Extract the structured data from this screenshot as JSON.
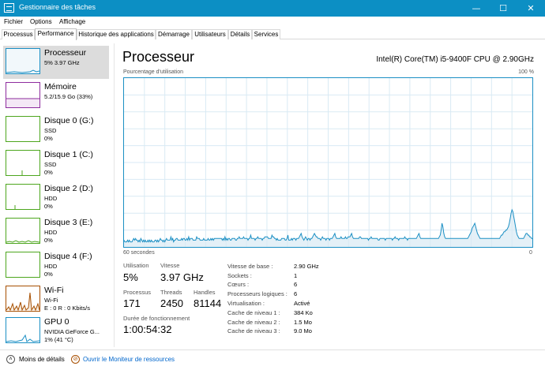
{
  "window": {
    "title": "Gestionnaire des tâches",
    "minimize": "—",
    "maximize": "☐",
    "close": "✕"
  },
  "menu": {
    "items": [
      "Fichier",
      "Options",
      "Affichage"
    ]
  },
  "tabs": [
    "Processus",
    "Performance",
    "Historique des applications",
    "Démarrage",
    "Utilisateurs",
    "Détails",
    "Services"
  ],
  "active_tab": "Performance",
  "sidebar": {
    "items": [
      {
        "name": "Processeur",
        "sub1": "5% 3.97 GHz",
        "sub2": "",
        "color": "#1b8fc4"
      },
      {
        "name": "Mémoire",
        "sub1": "5.2/15.9 Go (33%)",
        "sub2": "",
        "color": "#8e2c9e"
      },
      {
        "name": "Disque 0 (G:)",
        "sub1": "SSD",
        "sub2": "0%",
        "color": "#4da61e"
      },
      {
        "name": "Disque 1 (C:)",
        "sub1": "SSD",
        "sub2": "0%",
        "color": "#4da61e"
      },
      {
        "name": "Disque 2 (D:)",
        "sub1": "HDD",
        "sub2": "0%",
        "color": "#4da61e"
      },
      {
        "name": "Disque 3 (E:)",
        "sub1": "HDD",
        "sub2": "0%",
        "color": "#4da61e"
      },
      {
        "name": "Disque 4 (F:)",
        "sub1": "HDD",
        "sub2": "0%",
        "color": "#4da61e"
      },
      {
        "name": "Wi-Fi",
        "sub1": "Wi-Fi",
        "sub2": "E : 0 R : 0 Kbits/s",
        "color": "#a74f01"
      },
      {
        "name": "GPU 0",
        "sub1": "NVIDIA GeForce G...",
        "sub2": "1% (41 °C)",
        "color": "#1b8fc4"
      }
    ]
  },
  "main": {
    "title": "Processeur",
    "cpu_model": "Intel(R) Core(TM) i5-9400F CPU @ 2.90GHz",
    "graph_label": "Pourcentage d'utilisation",
    "graph_max": "100 %",
    "graph_time": "60 secondes",
    "graph_min": "0"
  },
  "stats": {
    "utilisation_label": "Utilisation",
    "utilisation": "5%",
    "vitesse_label": "Vitesse",
    "vitesse": "3.97 GHz",
    "processus_label": "Processus",
    "processus": "171",
    "threads_label": "Threads",
    "threads": "2450",
    "handles_label": "Handles",
    "handles": "81144",
    "uptime_label": "Durée de fonctionnement",
    "uptime": "1:00:54:32"
  },
  "properties": [
    {
      "label": "Vitesse de base :",
      "value": "2.90 GHz"
    },
    {
      "label": "Sockets :",
      "value": "1"
    },
    {
      "label": "Cœurs :",
      "value": "6"
    },
    {
      "label": "Processeurs logiques :",
      "value": "6"
    },
    {
      "label": "Virtualisation :",
      "value": "Activé"
    },
    {
      "label": "Cache de niveau 1 :",
      "value": "384 Ko"
    },
    {
      "label": "Cache de niveau 2 :",
      "value": "1.5 Mo"
    },
    {
      "label": "Cache de niveau 3 :",
      "value": "9.0 Mo"
    }
  ],
  "footer": {
    "less_details": "Moins de détails",
    "resource_monitor": "Ouvrir le Moniteur de ressources"
  },
  "chart_data": {
    "type": "area",
    "ylim": [
      0,
      100
    ],
    "values": [
      4,
      3,
      3,
      3,
      4,
      3,
      4,
      3,
      3,
      3,
      4,
      5,
      4,
      5,
      4,
      4,
      3,
      4,
      3,
      5,
      4,
      3,
      4,
      3,
      4,
      3,
      3,
      4,
      3,
      4,
      3,
      4,
      3,
      3,
      3,
      4,
      4,
      3,
      4,
      3,
      4,
      5,
      4,
      4,
      3,
      4,
      3,
      4,
      5,
      4,
      4,
      4,
      4,
      6,
      4,
      5,
      3,
      4,
      4,
      5,
      5,
      4,
      4,
      4,
      4,
      5,
      4,
      5,
      5,
      4,
      4,
      5,
      4,
      6,
      4,
      5,
      5,
      5,
      4,
      4,
      4,
      4,
      6,
      5,
      5,
      5,
      4,
      4,
      4,
      4,
      5,
      4,
      4,
      4,
      4,
      5,
      4,
      4,
      5,
      4,
      5,
      4,
      5,
      5,
      5,
      5,
      5,
      5,
      5,
      5,
      5,
      4,
      5,
      4,
      6,
      4,
      5,
      4,
      5,
      5,
      4,
      4,
      5,
      5,
      5,
      5,
      4,
      4,
      5,
      5,
      6,
      5,
      5,
      5,
      5,
      6,
      5,
      5,
      5,
      5,
      4,
      5,
      5,
      7,
      5,
      5,
      5,
      5,
      4,
      5,
      5,
      6,
      5,
      5,
      5,
      5,
      4,
      5,
      5,
      6,
      6,
      6,
      6,
      5,
      5,
      5,
      5,
      7,
      6,
      6,
      5,
      5,
      4,
      5,
      4,
      4,
      4,
      4,
      5,
      5,
      5,
      5,
      4,
      4,
      5,
      7,
      4,
      4,
      4,
      5,
      4,
      5,
      5,
      5,
      4,
      5,
      5,
      5,
      6,
      7,
      8,
      6,
      5,
      4,
      5,
      6,
      5,
      4,
      5,
      5,
      4,
      5,
      5,
      6,
      7,
      8,
      7,
      6,
      6,
      5,
      5,
      5,
      4,
      5,
      6,
      5,
      5,
      5,
      4,
      5,
      5,
      5,
      4,
      5,
      5,
      5,
      6,
      7,
      8,
      6,
      5,
      5,
      5,
      5,
      5,
      6,
      5,
      5,
      5,
      5,
      6,
      5,
      5,
      6,
      6,
      6,
      7,
      8,
      6,
      5,
      5,
      5,
      5,
      5,
      5,
      5,
      6,
      6,
      5,
      5,
      5,
      5,
      5,
      5,
      5,
      5,
      4,
      5,
      5,
      6,
      5,
      5,
      5,
      5,
      5,
      5,
      5,
      4,
      4,
      5,
      5,
      5,
      5,
      5,
      5,
      4,
      5,
      5,
      5,
      5,
      5,
      5,
      5,
      4,
      5,
      5,
      6,
      5,
      5,
      5,
      4,
      5,
      5,
      5,
      5,
      5,
      5,
      6,
      5,
      5,
      4,
      5,
      5,
      5,
      5,
      5,
      5,
      5,
      5,
      5,
      5,
      6,
      7,
      8,
      6,
      5,
      5,
      5,
      5,
      5,
      5,
      5,
      5,
      5,
      5,
      5,
      5,
      5,
      5,
      5,
      5,
      5,
      5,
      5,
      5,
      5,
      6,
      7,
      10,
      14,
      12,
      8,
      6,
      5,
      5,
      5,
      5,
      5,
      5,
      5,
      5,
      5,
      5,
      5,
      5,
      5,
      5,
      5,
      5,
      5,
      5,
      5,
      5,
      5,
      5,
      5,
      5,
      5,
      5,
      6,
      7,
      8,
      9,
      11,
      12,
      13,
      14,
      12,
      10,
      8,
      7,
      6,
      5,
      5,
      5,
      5,
      5,
      5,
      5,
      5,
      5,
      5,
      5,
      5,
      5,
      5,
      5,
      5,
      5,
      5,
      5,
      5,
      5,
      5,
      5,
      6,
      7,
      7,
      8,
      9,
      9,
      10,
      10,
      11,
      12,
      14,
      17,
      20,
      22,
      21,
      18,
      15,
      12,
      9,
      7,
      6,
      5,
      5,
      5,
      5,
      5,
      5,
      6,
      7,
      8,
      8,
      7,
      7,
      6,
      6,
      5,
      5
    ]
  }
}
